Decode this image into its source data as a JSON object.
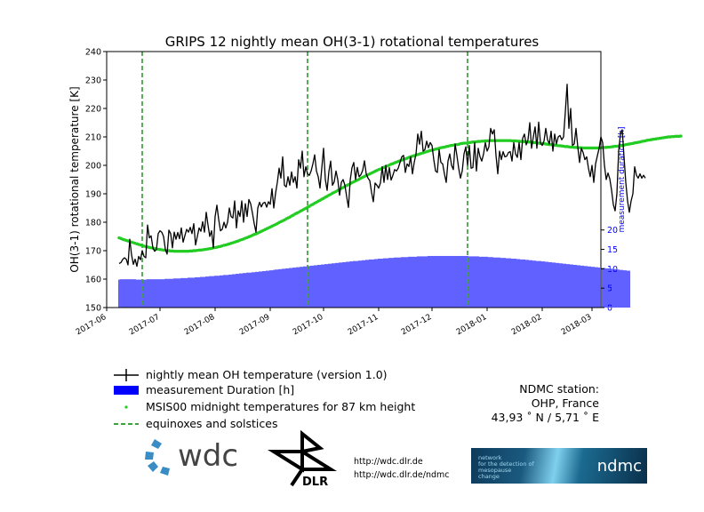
{
  "chart_data": {
    "type": "line",
    "title": "GRIPS 12 nightly mean OH(3-1) rotational temperatures",
    "ylabel": "OH(3-1) rotational temperature [K]",
    "y2label": "measurement duration [h]",
    "ylim": [
      150,
      240
    ],
    "yticks": [
      150,
      160,
      170,
      180,
      190,
      200,
      210,
      220,
      230,
      240
    ],
    "y2lim": [
      0,
      66
    ],
    "y2ticks": [
      0,
      5,
      10,
      15,
      20
    ],
    "xlim": [
      "2017-06-01",
      "2018-03-06"
    ],
    "xticks": [
      "2017-06",
      "2017-07",
      "2017-08",
      "2017-09",
      "2017-10",
      "2017-11",
      "2017-12",
      "2018-01",
      "2018-02",
      "2018-03"
    ],
    "grid": false,
    "vlines": [
      "2017-06-21",
      "2017-09-22",
      "2017-12-21"
    ],
    "series": [
      {
        "name": "nightly mean OH temperature (version 1.0)",
        "kind": "line",
        "color": "#000000",
        "x_start": "2017-06-08",
        "x_step_days": 1,
        "values": [
          165.5,
          165.8,
          166.9,
          167.5,
          167.0,
          165.0,
          174.0,
          168.5,
          165.2,
          167.0,
          164.5,
          168.0,
          166.8,
          170.0,
          168.0,
          167.5,
          179.0,
          174.5,
          175.2,
          171.0,
          169.8,
          170.5,
          176.0,
          177.0,
          176.5,
          175.0,
          170.5,
          168.8,
          177.2,
          176.0,
          171.0,
          176.5,
          174.0,
          176.4,
          174.2,
          178.0,
          173.0,
          175.3,
          177.5,
          176.5,
          178.2,
          176.0,
          179.5,
          172.0,
          175.0,
          178.0,
          176.8,
          180.2,
          176.5,
          183.5,
          179.0,
          175.0,
          177.0,
          171.0,
          182.0,
          186.0,
          181.0,
          177.0,
          177.5,
          180.0,
          178.0,
          180.0,
          185.0,
          182.0,
          181.5,
          187.5,
          178.0,
          184.0,
          182.0,
          187.5,
          180.0,
          186.5,
          182.0,
          188.0,
          186.5,
          183.2,
          179.5,
          176.5,
          185.0,
          187.0,
          185.4,
          186.7,
          187.0,
          185.3,
          187.2,
          186.3,
          191.8,
          185.0,
          190.2,
          194.0,
          199.0,
          195.5,
          203.0,
          193.0,
          192.4,
          196.0,
          193.0,
          197.7,
          194.0,
          196.0,
          192.0,
          202.0,
          199.0,
          205.0,
          196.0,
          199.5,
          197.0,
          196.5,
          198.0,
          200.5,
          203.7,
          198.0,
          196.0,
          192.0,
          199.0,
          206.0,
          195.0,
          191.2,
          197.8,
          201.5,
          193.0,
          194.2,
          198.0,
          195.0,
          189.5,
          194.0,
          195.0,
          193.0,
          189.0,
          185.2,
          194.8,
          199.2,
          201.0,
          195.0,
          199.3,
          196.0,
          196.7,
          198.2,
          201.6,
          197.0,
          195.5,
          194.6,
          190.5,
          187.2,
          193.8,
          193.0,
          192.0,
          193.8,
          199.5,
          194.0,
          200.0,
          195.0,
          199.2,
          194.8,
          196.5,
          198.5,
          198.0,
          199.0,
          201.0,
          203.0,
          203.5,
          197.5,
          200.5,
          199.6,
          203.0,
          197.0,
          201.0,
          204.0,
          211.0,
          207.4,
          212.0,
          205.0,
          205.5,
          208.5,
          206.2,
          208.0,
          207.0,
          202.0,
          198.0,
          197.5,
          205.5,
          201.0,
          200.5,
          197.0,
          194.0,
          201.5,
          204.0,
          200.0,
          198.5,
          207.5,
          203.5,
          199.0,
          195.5,
          198.0,
          204.0,
          206.5,
          200.0,
          207.0,
          199.0,
          199.2,
          208.0,
          198.0,
          206.0,
          203.0,
          201.5,
          204.0,
          208.0,
          205.0,
          206.5,
          213.0,
          211.0,
          212.5,
          203.5,
          197.0,
          205.0,
          202.0,
          204.8,
          203.0,
          203.2,
          204.5,
          204.8,
          201.5,
          208.0,
          204.0,
          202.8,
          208.0,
          202.0,
          209.5,
          211.0,
          207.2,
          209.0,
          215.0,
          206.0,
          210.0,
          213.5,
          206.0,
          215.2,
          208.0,
          207.0,
          208.5,
          213.0,
          209.0,
          207.5,
          212.0,
          205.0,
          211.0,
          207.5,
          210.0,
          210.5,
          209.0,
          210.0,
          218.8,
          228.5,
          213.0,
          220.0,
          207.0,
          207.5,
          213.0,
          206.5,
          201.0,
          206.0,
          204.5,
          202.0,
          203.0,
          199.0,
          196.0,
          200.0,
          194.0,
          200.5,
          203.3,
          206.0,
          210.0,
          208.0,
          200.0,
          195.0,
          197.3,
          195.3,
          191.3,
          186.2,
          184.0,
          190.0,
          205.0,
          211.0,
          212.5,
          203.0,
          194.0,
          187.5,
          183.5,
          187.5,
          190.0,
          199.5,
          196.5,
          195.5,
          197.0,
          195.5,
          196.5,
          195.5
        ]
      },
      {
        "name": "measurement Duration [h]",
        "kind": "bar",
        "axis": "right",
        "color": "#0000ff",
        "x_start": "2017-06-08",
        "x_step_days": 1,
        "values": [
          7.2,
          7.3,
          7.3,
          7.3,
          7.3,
          7.3,
          7.3,
          7.3,
          7.3,
          7.3,
          7.2,
          7.2,
          7.2,
          7.2,
          7.2,
          7.2,
          7.3,
          7.3,
          7.3,
          7.3,
          7.3,
          7.3,
          7.3,
          7.3,
          7.3,
          7.3,
          7.4,
          7.4,
          7.4,
          7.4,
          7.4,
          7.5,
          7.5,
          7.5,
          7.5,
          7.6,
          7.6,
          7.6,
          7.6,
          7.7,
          7.7,
          7.7,
          7.7,
          7.8,
          7.8,
          7.8,
          7.9,
          7.9,
          7.9,
          8.0,
          8.0,
          8.1,
          8.1,
          8.1,
          8.2,
          8.2,
          8.2,
          8.3,
          8.3,
          8.4,
          8.4,
          8.4,
          8.5,
          8.5,
          8.6,
          8.6,
          8.7,
          8.7,
          8.8,
          8.8,
          8.9,
          8.9,
          9.0,
          9.0,
          9.0,
          9.1,
          9.1,
          9.2,
          9.2,
          9.3,
          9.3,
          9.4,
          9.4,
          9.5,
          9.5,
          9.6,
          9.6,
          9.7,
          9.8,
          9.8,
          9.9,
          9.9,
          10.0,
          10.0,
          10.1,
          10.1,
          10.2,
          10.2,
          10.3,
          10.3,
          10.4,
          10.4,
          10.5,
          10.5,
          10.6,
          10.6,
          10.7,
          10.7,
          10.8,
          10.8,
          10.9,
          10.9,
          11.0,
          11.0,
          11.1,
          11.1,
          11.2,
          11.2,
          11.3,
          11.3,
          11.4,
          11.4,
          11.5,
          11.5,
          11.6,
          11.6,
          11.7,
          11.7,
          11.8,
          11.8,
          11.9,
          11.9,
          12.0,
          12.0,
          12.0,
          12.1,
          12.1,
          12.2,
          12.2,
          12.3,
          12.3,
          12.4,
          12.4,
          12.4,
          12.5,
          12.5,
          12.6,
          12.6,
          12.6,
          12.7,
          12.7,
          12.7,
          12.8,
          12.8,
          12.8,
          12.9,
          12.9,
          12.9,
          12.9,
          13.0,
          13.0,
          13.0,
          13.0,
          13.1,
          13.1,
          13.1,
          13.1,
          13.1,
          13.2,
          13.2,
          13.2,
          13.2,
          13.2,
          13.2,
          13.3,
          13.3,
          13.3,
          13.3,
          13.3,
          13.3,
          13.3,
          13.3,
          13.3,
          13.3,
          13.3,
          13.3,
          13.3,
          13.3,
          13.3,
          13.3,
          13.3,
          13.3,
          13.3,
          13.3,
          13.3,
          13.3,
          13.3,
          13.2,
          13.2,
          13.2,
          13.2,
          13.2,
          13.2,
          13.1,
          13.1,
          13.1,
          13.1,
          13.1,
          13.0,
          13.0,
          13.0,
          12.9,
          12.9,
          12.9,
          12.9,
          12.8,
          12.8,
          12.8,
          12.7,
          12.7,
          12.7,
          12.6,
          12.6,
          12.6,
          12.5,
          12.5,
          12.4,
          12.4,
          12.4,
          12.3,
          12.3,
          12.2,
          12.2,
          12.1,
          12.1,
          12.0,
          12.0,
          12.0,
          11.9,
          11.9,
          11.8,
          11.8,
          11.7,
          11.7,
          11.6,
          11.6,
          11.5,
          11.5,
          11.4,
          11.4,
          11.3,
          11.3,
          11.2,
          11.2,
          11.1,
          11.1,
          11.0,
          11.0,
          10.9,
          10.9,
          10.8,
          10.8,
          10.7,
          10.7,
          10.6,
          10.6,
          10.5,
          10.5,
          10.4,
          10.4,
          10.3,
          10.3,
          10.2,
          10.2,
          10.1,
          10.1,
          10.0,
          10.0,
          9.9,
          9.9,
          9.8,
          9.8,
          9.7,
          9.7,
          9.6,
          9.6,
          9.5,
          9.5
        ]
      },
      {
        "name": "MSIS00 midnight temperatures for 87 km height",
        "kind": "dots",
        "color": "#22cc22",
        "x_start": "2017-06-08",
        "x_step_days": 1,
        "values": [
          174.5,
          174.3,
          174.0,
          173.8,
          173.6,
          173.4,
          173.2,
          173.0,
          172.8,
          172.6,
          172.4,
          172.2,
          172.0,
          171.8,
          171.6,
          171.4,
          171.3,
          171.1,
          171.0,
          170.9,
          170.7,
          170.6,
          170.5,
          170.4,
          170.3,
          170.2,
          170.1,
          170.0,
          170.0,
          169.9,
          169.9,
          169.8,
          169.8,
          169.8,
          169.8,
          169.8,
          169.8,
          169.8,
          169.8,
          169.8,
          169.9,
          169.9,
          170.0,
          170.0,
          170.1,
          170.2,
          170.2,
          170.3,
          170.4,
          170.5,
          170.6,
          170.7,
          170.8,
          171.0,
          171.1,
          171.2,
          171.4,
          171.5,
          171.7,
          171.9,
          172.0,
          172.2,
          172.4,
          172.6,
          172.8,
          173.0,
          173.2,
          173.4,
          173.7,
          173.9,
          174.1,
          174.4,
          174.6,
          174.9,
          175.1,
          175.4,
          175.7,
          175.9,
          176.2,
          176.5,
          176.8,
          177.1,
          177.4,
          177.7,
          178.0,
          178.3,
          178.6,
          178.9,
          179.2,
          179.5,
          179.9,
          180.2,
          180.5,
          180.8,
          181.2,
          181.5,
          181.8,
          182.2,
          182.5,
          182.9,
          183.2,
          183.5,
          183.9,
          184.2,
          184.6,
          184.9,
          185.3,
          185.6,
          186.0,
          186.3,
          186.7,
          187.0,
          187.4,
          187.7,
          188.1,
          188.4,
          188.8,
          189.1,
          189.5,
          189.8,
          190.2,
          190.5,
          190.8,
          191.2,
          191.5,
          191.9,
          192.2,
          192.5,
          192.9,
          193.2,
          193.5,
          193.9,
          194.2,
          194.5,
          194.8,
          195.1,
          195.5,
          195.8,
          196.1,
          196.4,
          196.7,
          197.0,
          197.3,
          197.6,
          197.9,
          198.2,
          198.5,
          198.7,
          199.0,
          199.3,
          199.6,
          199.8,
          200.1,
          200.4,
          200.6,
          200.9,
          201.1,
          201.4,
          201.6,
          201.8,
          202.1,
          202.3,
          202.5,
          202.8,
          203.0,
          203.2,
          203.4,
          203.6,
          203.8,
          204.0,
          204.2,
          204.4,
          204.6,
          204.8,
          205.0,
          205.2,
          205.3,
          205.5,
          205.7,
          205.8,
          206.0,
          206.2,
          206.3,
          206.4,
          206.6,
          206.7,
          206.9,
          207.0,
          207.1,
          207.2,
          207.3,
          207.4,
          207.6,
          207.7,
          207.8,
          207.8,
          207.9,
          208.0,
          208.1,
          208.2,
          208.2,
          208.3,
          208.4,
          208.4,
          208.5,
          208.5,
          208.6,
          208.6,
          208.6,
          208.7,
          208.7,
          208.7,
          208.7,
          208.7,
          208.7,
          208.7,
          208.7,
          208.7,
          208.7,
          208.7,
          208.7,
          208.6,
          208.6,
          208.6,
          208.5,
          208.5,
          208.4,
          208.4,
          208.3,
          208.3,
          208.2,
          208.2,
          208.1,
          208.0,
          208.0,
          207.9,
          207.8,
          207.7,
          207.7,
          207.6,
          207.5,
          207.4,
          207.3,
          207.3,
          207.2,
          207.1,
          207.0,
          206.9,
          206.9,
          206.8,
          206.7,
          206.6,
          206.6,
          206.5,
          206.4,
          206.4,
          206.3,
          206.3,
          206.2,
          206.2,
          206.2,
          206.1,
          206.1,
          206.1,
          206.1,
          206.1,
          206.1,
          206.1,
          206.1,
          206.1,
          206.1,
          206.2,
          206.2,
          206.3,
          206.3,
          206.4,
          206.4,
          206.5,
          206.6,
          206.7,
          206.7,
          206.8,
          206.9,
          207.0,
          207.1,
          207.3,
          207.4,
          207.5,
          207.6,
          207.7,
          207.9,
          208.0,
          208.1,
          208.2,
          208.4,
          208.5,
          208.6,
          208.8,
          208.9,
          209.0,
          209.1,
          209.2,
          209.3,
          209.4,
          209.5,
          209.6,
          209.7,
          209.8,
          209.9,
          210.0,
          210.0,
          210.1,
          210.1,
          210.2,
          210.2,
          210.2,
          210.3
        ]
      },
      {
        "name": "equinoxes and solstices",
        "kind": "vlines",
        "color": "#008000"
      }
    ]
  },
  "legend": [
    {
      "label": "nightly mean OH temperature (version 1.0)",
      "symbol": "errorbar",
      "color": "#000000"
    },
    {
      "label": "measurement Duration [h]",
      "symbol": "bar",
      "color": "#0000ff"
    },
    {
      "label": "MSIS00 midnight temperatures for 87 km height",
      "symbol": "dot",
      "color": "#22cc22"
    },
    {
      "label": "equinoxes and solstices",
      "symbol": "dashed",
      "color": "#008000"
    }
  ],
  "station": {
    "line1": "NDMC station:",
    "line2": "OHP, France",
    "line3": "43,93 ˚ N / 5,71 ˚  E"
  },
  "logos": {
    "wdc_text": "wdc",
    "dlr_text": "DLR",
    "ndmc_small": [
      "network",
      "for the detection of",
      "mesopause",
      "change"
    ],
    "ndmc_text": "ndmc"
  },
  "links": [
    "http://wdc.dlr.de",
    "http://wdc.dlr.de/ndmc"
  ]
}
